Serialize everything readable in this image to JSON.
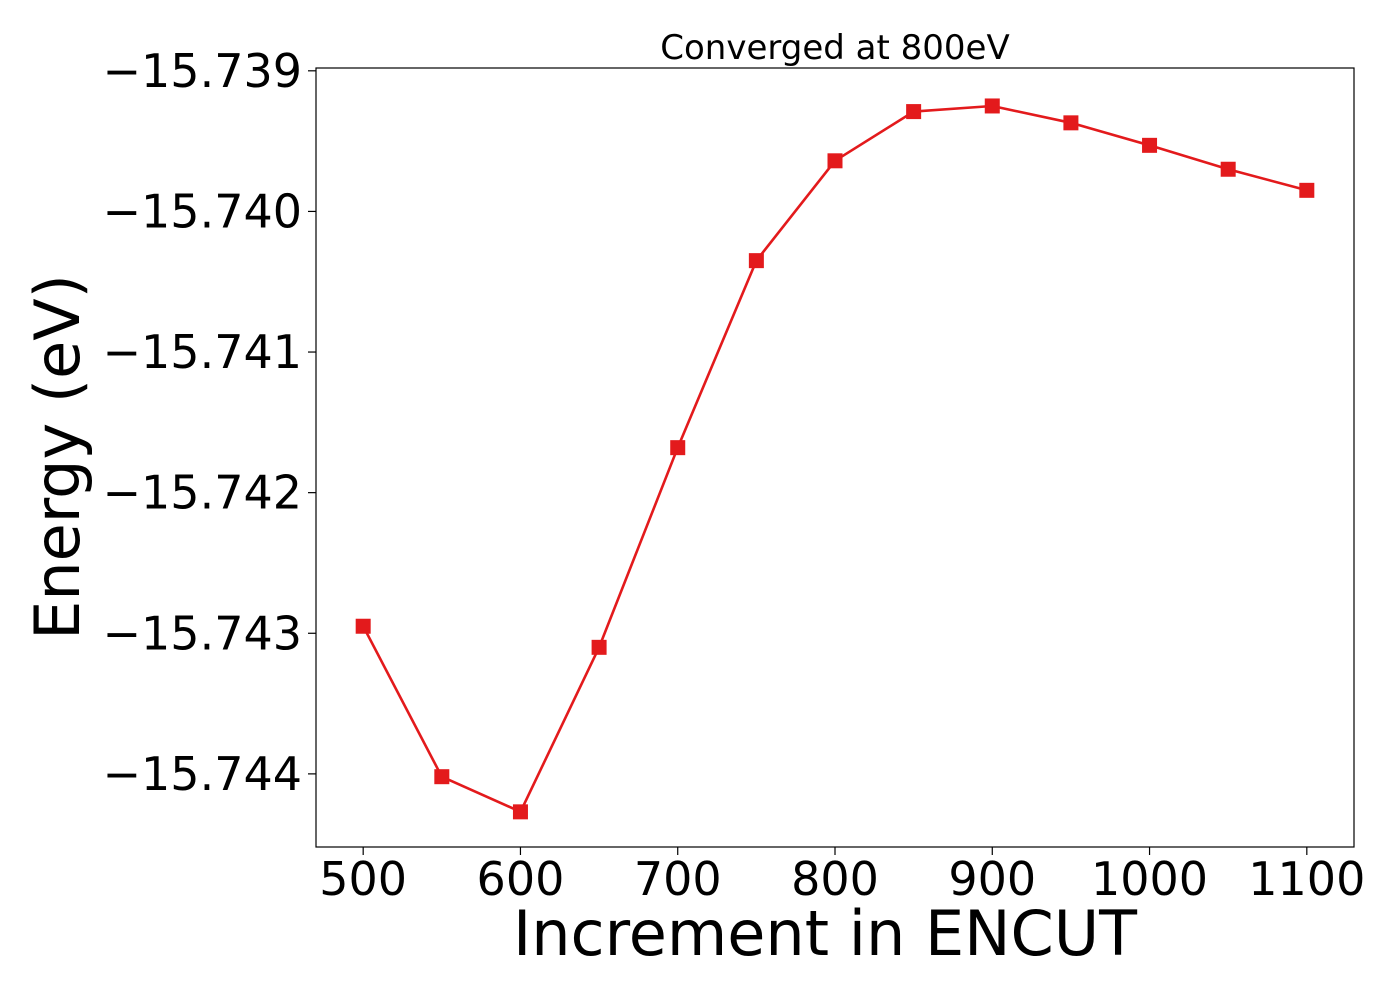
{
  "chart_data": {
    "type": "line",
    "title": "Converged at 800eV",
    "xlabel": "Increment in ENCUT",
    "ylabel": "Energy (eV)",
    "xlim": [
      470,
      1130
    ],
    "ylim": [
      -15.74452,
      -15.73898
    ],
    "x_ticks": [
      500,
      600,
      700,
      800,
      900,
      1000,
      1100
    ],
    "x_tick_labels": [
      "500",
      "600",
      "700",
      "800",
      "900",
      "1000",
      "1100"
    ],
    "y_ticks": [
      -15.744,
      -15.743,
      -15.742,
      -15.741,
      -15.74,
      -15.739
    ],
    "y_tick_labels": [
      "−15.744",
      "−15.743",
      "−15.742",
      "−15.741",
      "−15.740",
      "−15.739"
    ],
    "grid": false,
    "legend": false,
    "series": [
      {
        "color": "#e31a1c",
        "marker": "square",
        "x": [
          500,
          550,
          600,
          650,
          700,
          750,
          800,
          850,
          900,
          950,
          1000,
          1050,
          1100
        ],
        "y": [
          -15.74295,
          -15.74402,
          -15.74427,
          -15.7431,
          -15.74168,
          -15.74035,
          -15.73964,
          -15.73929,
          -15.73925,
          -15.73937,
          -15.73953,
          -15.7397,
          -15.73985
        ]
      }
    ]
  }
}
